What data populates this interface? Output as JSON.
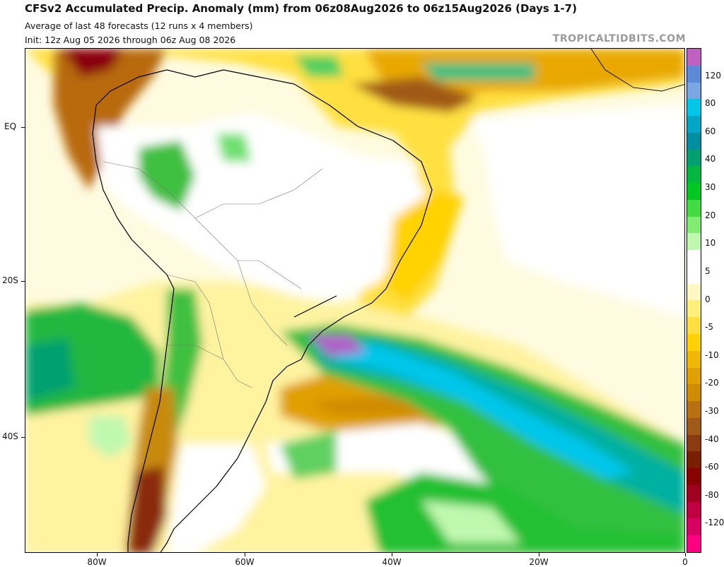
{
  "header": {
    "title": "CFSv2 Accumulated Precip. Anomaly (mm) from 06z08Aug2026 to 06z15Aug2026 (Days 1-7)",
    "subtitle": "Average of last 48 forecasts (12 runs x 4 members)",
    "init": "Init: 12z Aug 05 2026 through 06z Aug 08 2026",
    "credit": "TROPICALTIDBITS.COM"
  },
  "axes": {
    "lat_labels": [
      "EQ",
      "20S",
      "40S"
    ],
    "lon_labels": [
      "80W",
      "60W",
      "40W",
      "20W",
      "0"
    ]
  },
  "colorbar": {
    "labels": [
      "120",
      "80",
      "60",
      "40",
      "30",
      "20",
      "10",
      "5",
      "0",
      "-5",
      "-10",
      "-20",
      "-30",
      "-40",
      "-60",
      "-80",
      "-120"
    ],
    "colors": [
      "#c060c0",
      "#5a8ad8",
      "#7aa6e4",
      "#00c6ea",
      "#00a6c6",
      "#008ea0",
      "#00a070",
      "#00b840",
      "#00c820",
      "#40dc40",
      "#80ec70",
      "#c0f8b0",
      "#ffffff",
      "#ffffff",
      "#fff8c0",
      "#fff07a",
      "#ffe040",
      "#ffd200",
      "#f0b800",
      "#e0a000",
      "#d08c00",
      "#b87010",
      "#a05a18",
      "#8a3c10",
      "#7a2000",
      "#880000",
      "#a00020",
      "#c00040",
      "#d80060",
      "#ff0080"
    ]
  }
}
